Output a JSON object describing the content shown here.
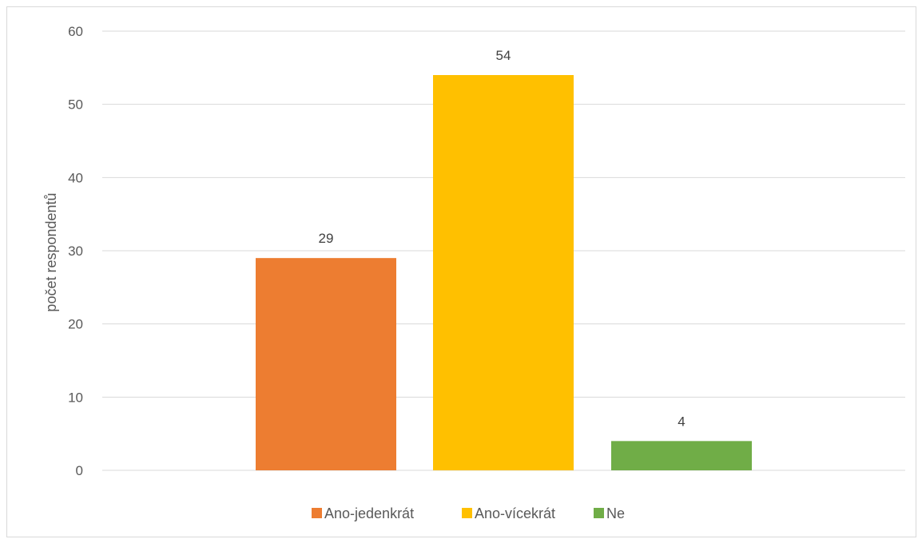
{
  "chart_data": {
    "type": "bar",
    "title": "",
    "xlabel": "",
    "ylabel": "počet respondentů",
    "ylim": [
      0,
      60
    ],
    "yticks": [
      0,
      10,
      20,
      30,
      40,
      50,
      60
    ],
    "grid": true,
    "legend_position": "bottom",
    "series": [
      {
        "name": "Ano-jedenkrát",
        "value": 29,
        "color": "#ED7D31"
      },
      {
        "name": "Ano-vícekrát",
        "value": 54,
        "color": "#FFC000"
      },
      {
        "name": "Ne",
        "value": 4,
        "color": "#70AD47"
      }
    ]
  }
}
